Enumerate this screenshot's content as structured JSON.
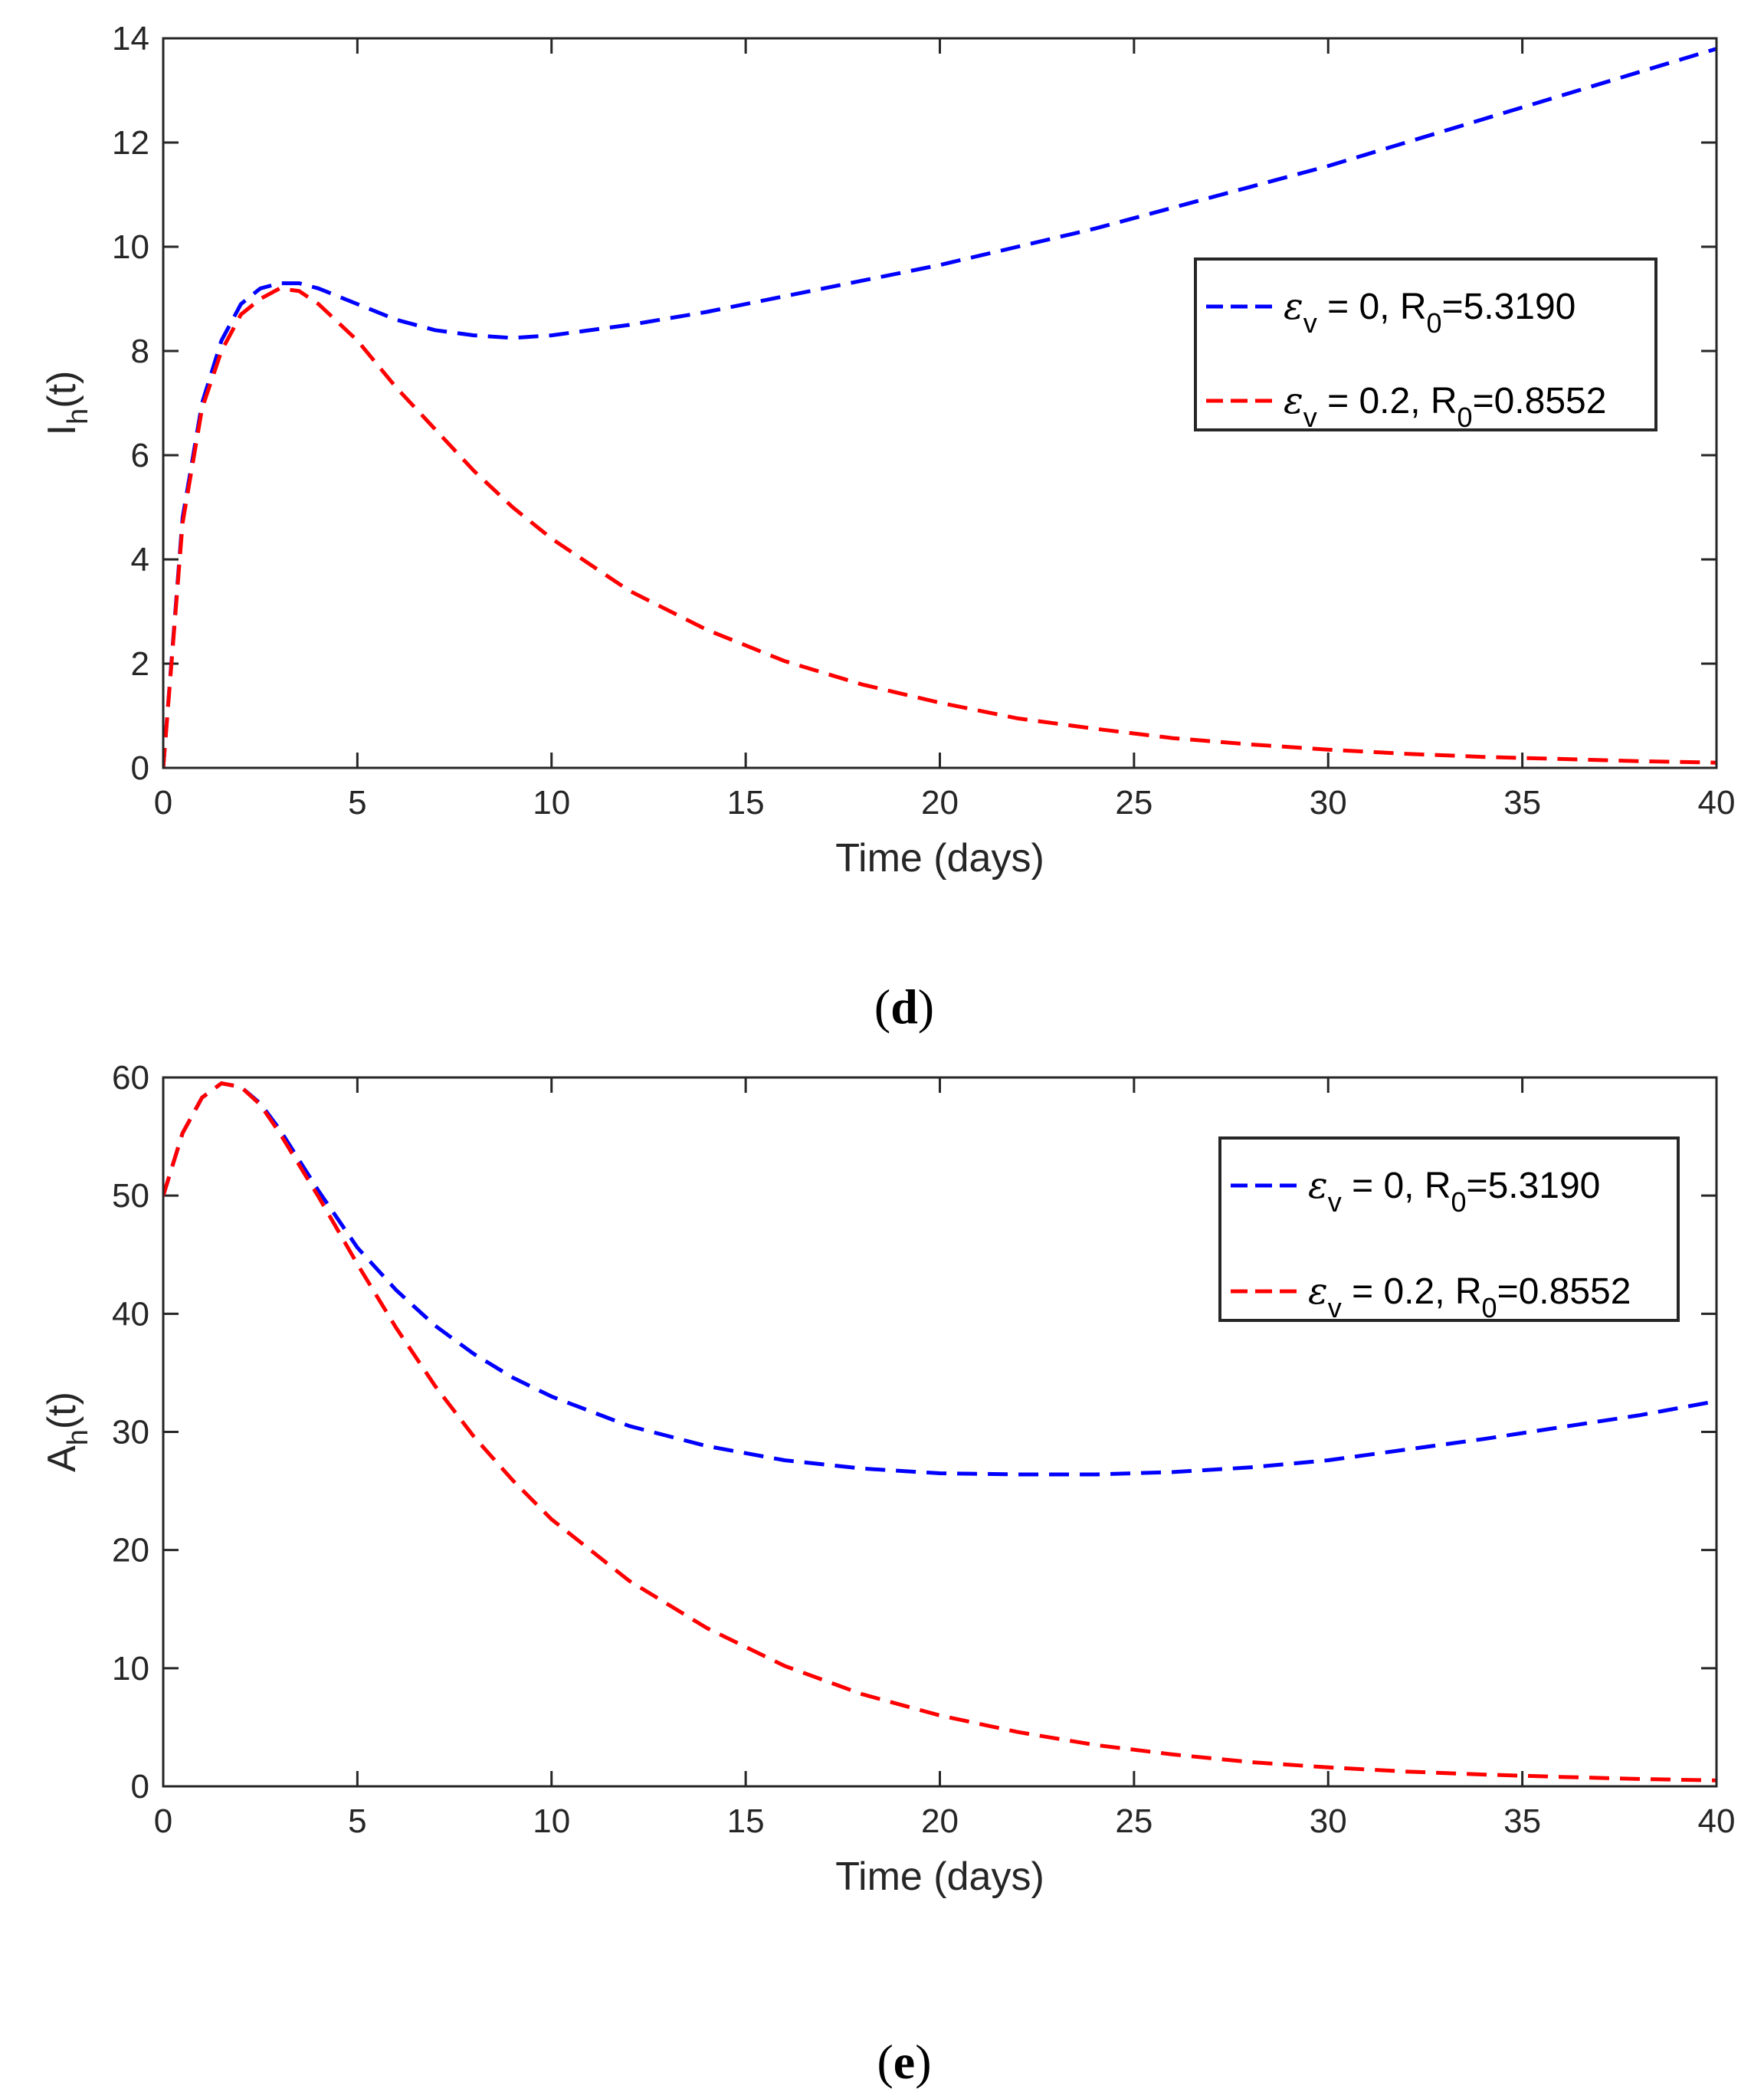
{
  "chart_data": [
    {
      "type": "line",
      "panel_label": "d",
      "xlabel": "Time (days)",
      "ylabel": {
        "main": "I",
        "sub": "h",
        "suffix": "(t)"
      },
      "xlim": [
        0,
        40
      ],
      "ylim": [
        0,
        14
      ],
      "xticks": [
        0,
        5,
        10,
        15,
        20,
        25,
        30,
        35,
        40
      ],
      "yticks": [
        0,
        2,
        4,
        6,
        8,
        10,
        12,
        14
      ],
      "legend_position": "right",
      "series": [
        {
          "name": "ε_v = 0, R_0=5.3190",
          "legend": {
            "eps_value": "0",
            "r0_value": "5.3190"
          },
          "color": "#0000ff",
          "x": [
            0,
            0.5,
            1,
            1.5,
            2,
            2.5,
            3,
            3.5,
            4,
            5,
            6,
            7,
            8,
            9,
            10,
            12,
            14,
            16,
            18,
            20,
            22,
            24,
            26,
            28,
            30,
            32,
            34,
            36,
            38,
            40
          ],
          "y": [
            0,
            4.8,
            7.0,
            8.2,
            8.9,
            9.2,
            9.3,
            9.3,
            9.2,
            8.9,
            8.6,
            8.4,
            8.3,
            8.25,
            8.3,
            8.5,
            8.75,
            9.05,
            9.35,
            9.65,
            10.0,
            10.35,
            10.75,
            11.15,
            11.55,
            12.0,
            12.45,
            12.9,
            13.35,
            13.8
          ]
        },
        {
          "name": "ε_v = 0.2, R_0=0.8552",
          "legend": {
            "eps_value": "0.2",
            "r0_value": "0.8552"
          },
          "color": "#ff0000",
          "x": [
            0,
            0.5,
            1,
            1.5,
            2,
            2.5,
            3,
            3.5,
            4,
            5,
            6,
            7,
            8,
            9,
            10,
            12,
            14,
            16,
            18,
            20,
            22,
            24,
            26,
            28,
            30,
            32,
            34,
            36,
            38,
            40
          ],
          "y": [
            0,
            4.7,
            6.9,
            8.0,
            8.7,
            9.0,
            9.2,
            9.15,
            8.9,
            8.2,
            7.3,
            6.5,
            5.7,
            5.0,
            4.4,
            3.4,
            2.65,
            2.05,
            1.6,
            1.25,
            0.95,
            0.75,
            0.57,
            0.45,
            0.35,
            0.27,
            0.21,
            0.17,
            0.13,
            0.1
          ]
        }
      ]
    },
    {
      "type": "line",
      "panel_label": "e",
      "xlabel": "Time (days)",
      "ylabel": {
        "main": "A",
        "sub": "h",
        "suffix": "(t)"
      },
      "xlim": [
        0,
        40
      ],
      "ylim": [
        0,
        60
      ],
      "xticks": [
        0,
        5,
        10,
        15,
        20,
        25,
        30,
        35,
        40
      ],
      "yticks": [
        0,
        10,
        20,
        30,
        40,
        50,
        60
      ],
      "legend_position": "top-right",
      "series": [
        {
          "name": "ε_v = 0, R_0=5.3190",
          "legend": {
            "eps_value": "0",
            "r0_value": "5.3190"
          },
          "color": "#0000ff",
          "x": [
            0,
            0.5,
            1,
            1.5,
            2,
            2.5,
            3,
            4,
            5,
            6,
            7,
            8,
            9,
            10,
            12,
            14,
            16,
            18,
            20,
            22,
            24,
            26,
            28,
            30,
            32,
            34,
            36,
            38,
            40
          ],
          "y": [
            50,
            55.3,
            58.3,
            59.5,
            59.2,
            57.8,
            55.6,
            50.4,
            45.6,
            42.0,
            39.0,
            36.6,
            34.6,
            33.0,
            30.5,
            28.8,
            27.6,
            26.9,
            26.5,
            26.4,
            26.4,
            26.6,
            27.0,
            27.6,
            28.5,
            29.4,
            30.4,
            31.4,
            32.6
          ]
        },
        {
          "name": "ε_v = 0.2, R_0=0.8552",
          "legend": {
            "eps_value": "0.2",
            "r0_value": "0.8552"
          },
          "color": "#ff0000",
          "x": [
            0,
            0.5,
            1,
            1.5,
            2,
            2.5,
            3,
            4,
            5,
            6,
            7,
            8,
            9,
            10,
            12,
            14,
            16,
            18,
            20,
            22,
            24,
            26,
            28,
            30,
            32,
            34,
            36,
            38,
            40
          ],
          "y": [
            50,
            55.3,
            58.3,
            59.5,
            59.2,
            57.7,
            55.3,
            49.9,
            44.2,
            38.8,
            33.9,
            29.6,
            25.9,
            22.6,
            17.4,
            13.4,
            10.2,
            7.8,
            6.0,
            4.6,
            3.5,
            2.7,
            2.05,
            1.6,
            1.25,
            1.0,
            0.8,
            0.62,
            0.5
          ]
        }
      ]
    }
  ]
}
